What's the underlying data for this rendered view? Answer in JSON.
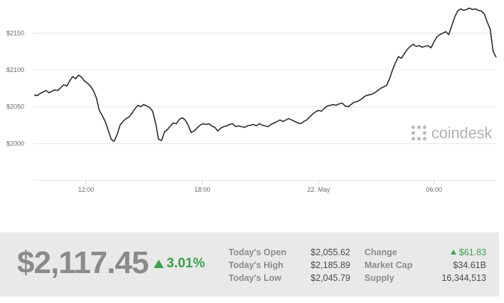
{
  "chart_data": {
    "type": "line",
    "x_ticks": [
      "12:00",
      "18:00",
      "22. May",
      "06:00"
    ],
    "y_ticks": [
      "$2000",
      "$2050",
      "$2100",
      "$2150"
    ],
    "ylim": [
      1950,
      2195
    ],
    "grid": true,
    "series": [
      {
        "values": [
          2066,
          2065,
          2068,
          2070,
          2072,
          2069,
          2071,
          2073,
          2072,
          2076,
          2080,
          2078,
          2085,
          2091,
          2088,
          2093,
          2090,
          2085,
          2082,
          2078,
          2072,
          2062,
          2045,
          2038,
          2030,
          2018,
          2006,
          2003,
          2012,
          2025,
          2030,
          2034,
          2036,
          2041,
          2047,
          2052,
          2050,
          2053,
          2051,
          2049,
          2044,
          2028,
          2006,
          2004,
          2016,
          2019,
          2024,
          2028,
          2027,
          2033,
          2035,
          2032,
          2025,
          2015,
          2017,
          2021,
          2025,
          2027,
          2026,
          2027,
          2024,
          2022,
          2017,
          2021,
          2023,
          2024,
          2026,
          2027,
          2023,
          2024,
          2023,
          2022,
          2024,
          2025,
          2026,
          2024,
          2027,
          2025,
          2024,
          2023,
          2026,
          2028,
          2030,
          2032,
          2030,
          2032,
          2034,
          2032,
          2030,
          2028,
          2027,
          2030,
          2032,
          2036,
          2040,
          2043,
          2045,
          2044,
          2048,
          2051,
          2052,
          2053,
          2052,
          2054,
          2055,
          2051,
          2050,
          2053,
          2056,
          2057,
          2059,
          2062,
          2065,
          2066,
          2067,
          2069,
          2072,
          2075,
          2077,
          2079,
          2088,
          2100,
          2110,
          2118,
          2116,
          2122,
          2128,
          2132,
          2135,
          2132,
          2133,
          2131,
          2132,
          2133,
          2130,
          2138,
          2145,
          2148,
          2150,
          2152,
          2148,
          2160,
          2172,
          2180,
          2183,
          2181,
          2182,
          2184,
          2182,
          2183,
          2181,
          2180,
          2176,
          2165,
          2155,
          2125,
          2117
        ]
      }
    ]
  },
  "watermark": {
    "text": "coindesk",
    "icon": "coindesk-dots-icon"
  },
  "ticker": {
    "price": "$2,117.45",
    "percent_change": "3.01%",
    "stats_left": [
      {
        "label": "Today's Open",
        "value": "$2,055.62"
      },
      {
        "label": "Today's High",
        "value": "$2,185.89"
      },
      {
        "label": "Today's Low",
        "value": "$2,045.79"
      }
    ],
    "stats_right": [
      {
        "label": "Change",
        "value": "$61.83"
      },
      {
        "label": "Market Cap",
        "value": "$34.61B"
      },
      {
        "label": "Supply",
        "value": "16,344,513"
      }
    ],
    "up_color": "#3aa34a"
  }
}
